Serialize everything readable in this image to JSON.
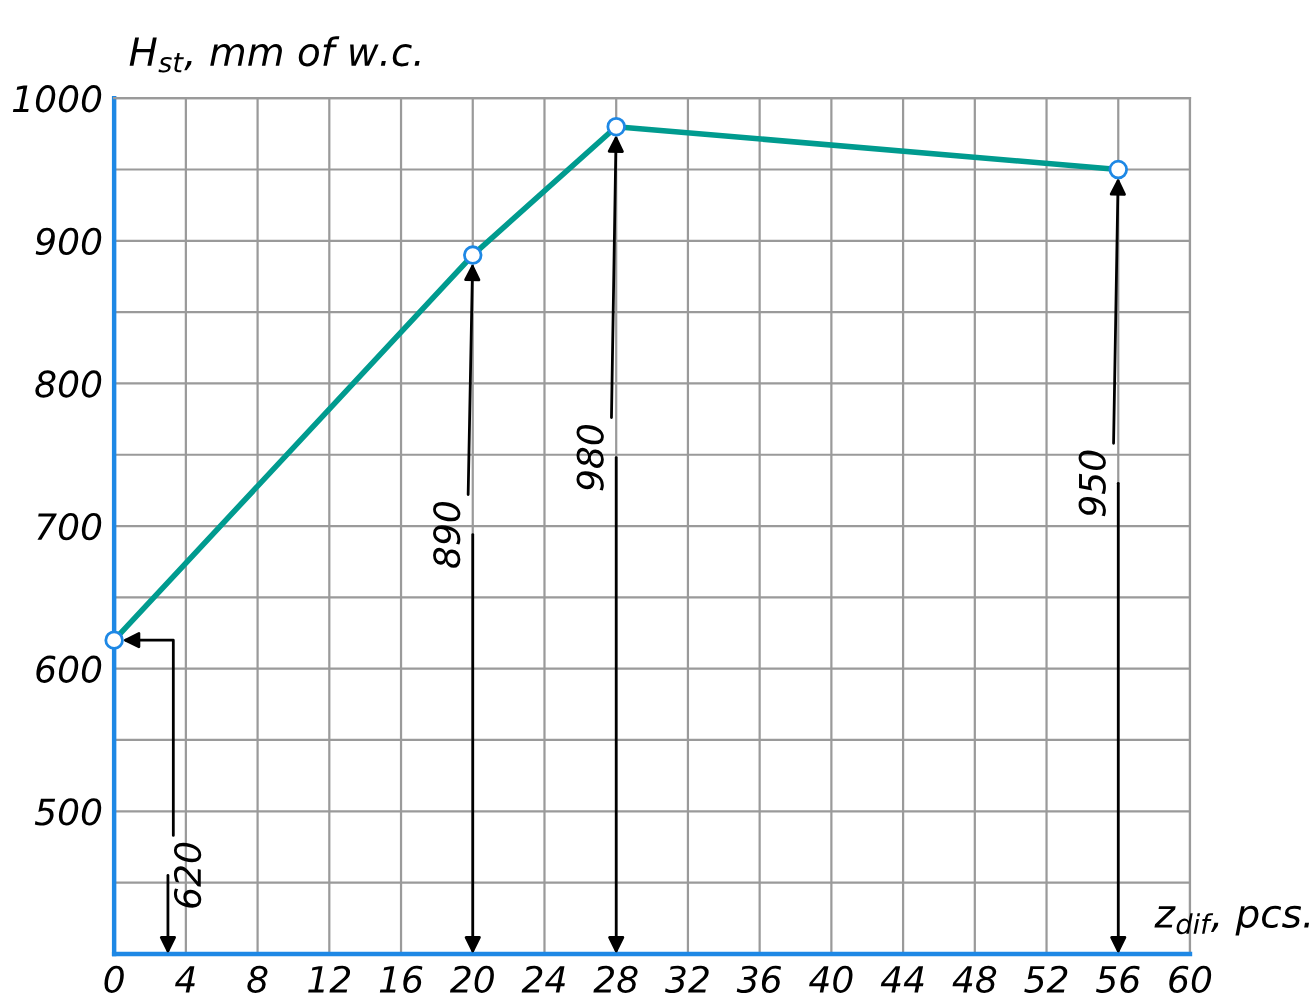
{
  "chart_data": {
    "type": "line",
    "xlabel": "z$_{dif}$, pcs.",
    "ylabel": "H$_{st}$, mm of w.c.",
    "x": [
      0,
      20,
      28,
      56
    ],
    "series": [
      {
        "color": "#009b8f",
        "values": [
          620,
          890,
          980,
          950
        ]
      }
    ],
    "marker": "circle",
    "grid": true,
    "xlim": [
      0,
      60
    ],
    "xticks": [
      0,
      4,
      8,
      12,
      16,
      20,
      24,
      28,
      32,
      36,
      40,
      44,
      48,
      52,
      56,
      60
    ],
    "ylim": [
      400,
      1000
    ],
    "yticks": [
      {
        "value": 400,
        "label": null
      },
      {
        "value": 450,
        "label": null
      },
      500,
      {
        "value": 550,
        "label": null
      },
      600,
      {
        "value": 650,
        "label": null
      },
      700,
      {
        "value": 750,
        "label": null
      },
      800,
      {
        "value": 850,
        "label": null
      },
      900,
      {
        "value": 950,
        "label": null
      },
      1000
    ],
    "annotations": [
      {
        "text": "620",
        "x": 0,
        "y": 620
      },
      {
        "text": "890",
        "x": 20,
        "y": 890
      },
      {
        "text": "980",
        "x": 28,
        "y": 980
      },
      {
        "text": "950",
        "x": 56,
        "y": 950
      }
    ]
  }
}
